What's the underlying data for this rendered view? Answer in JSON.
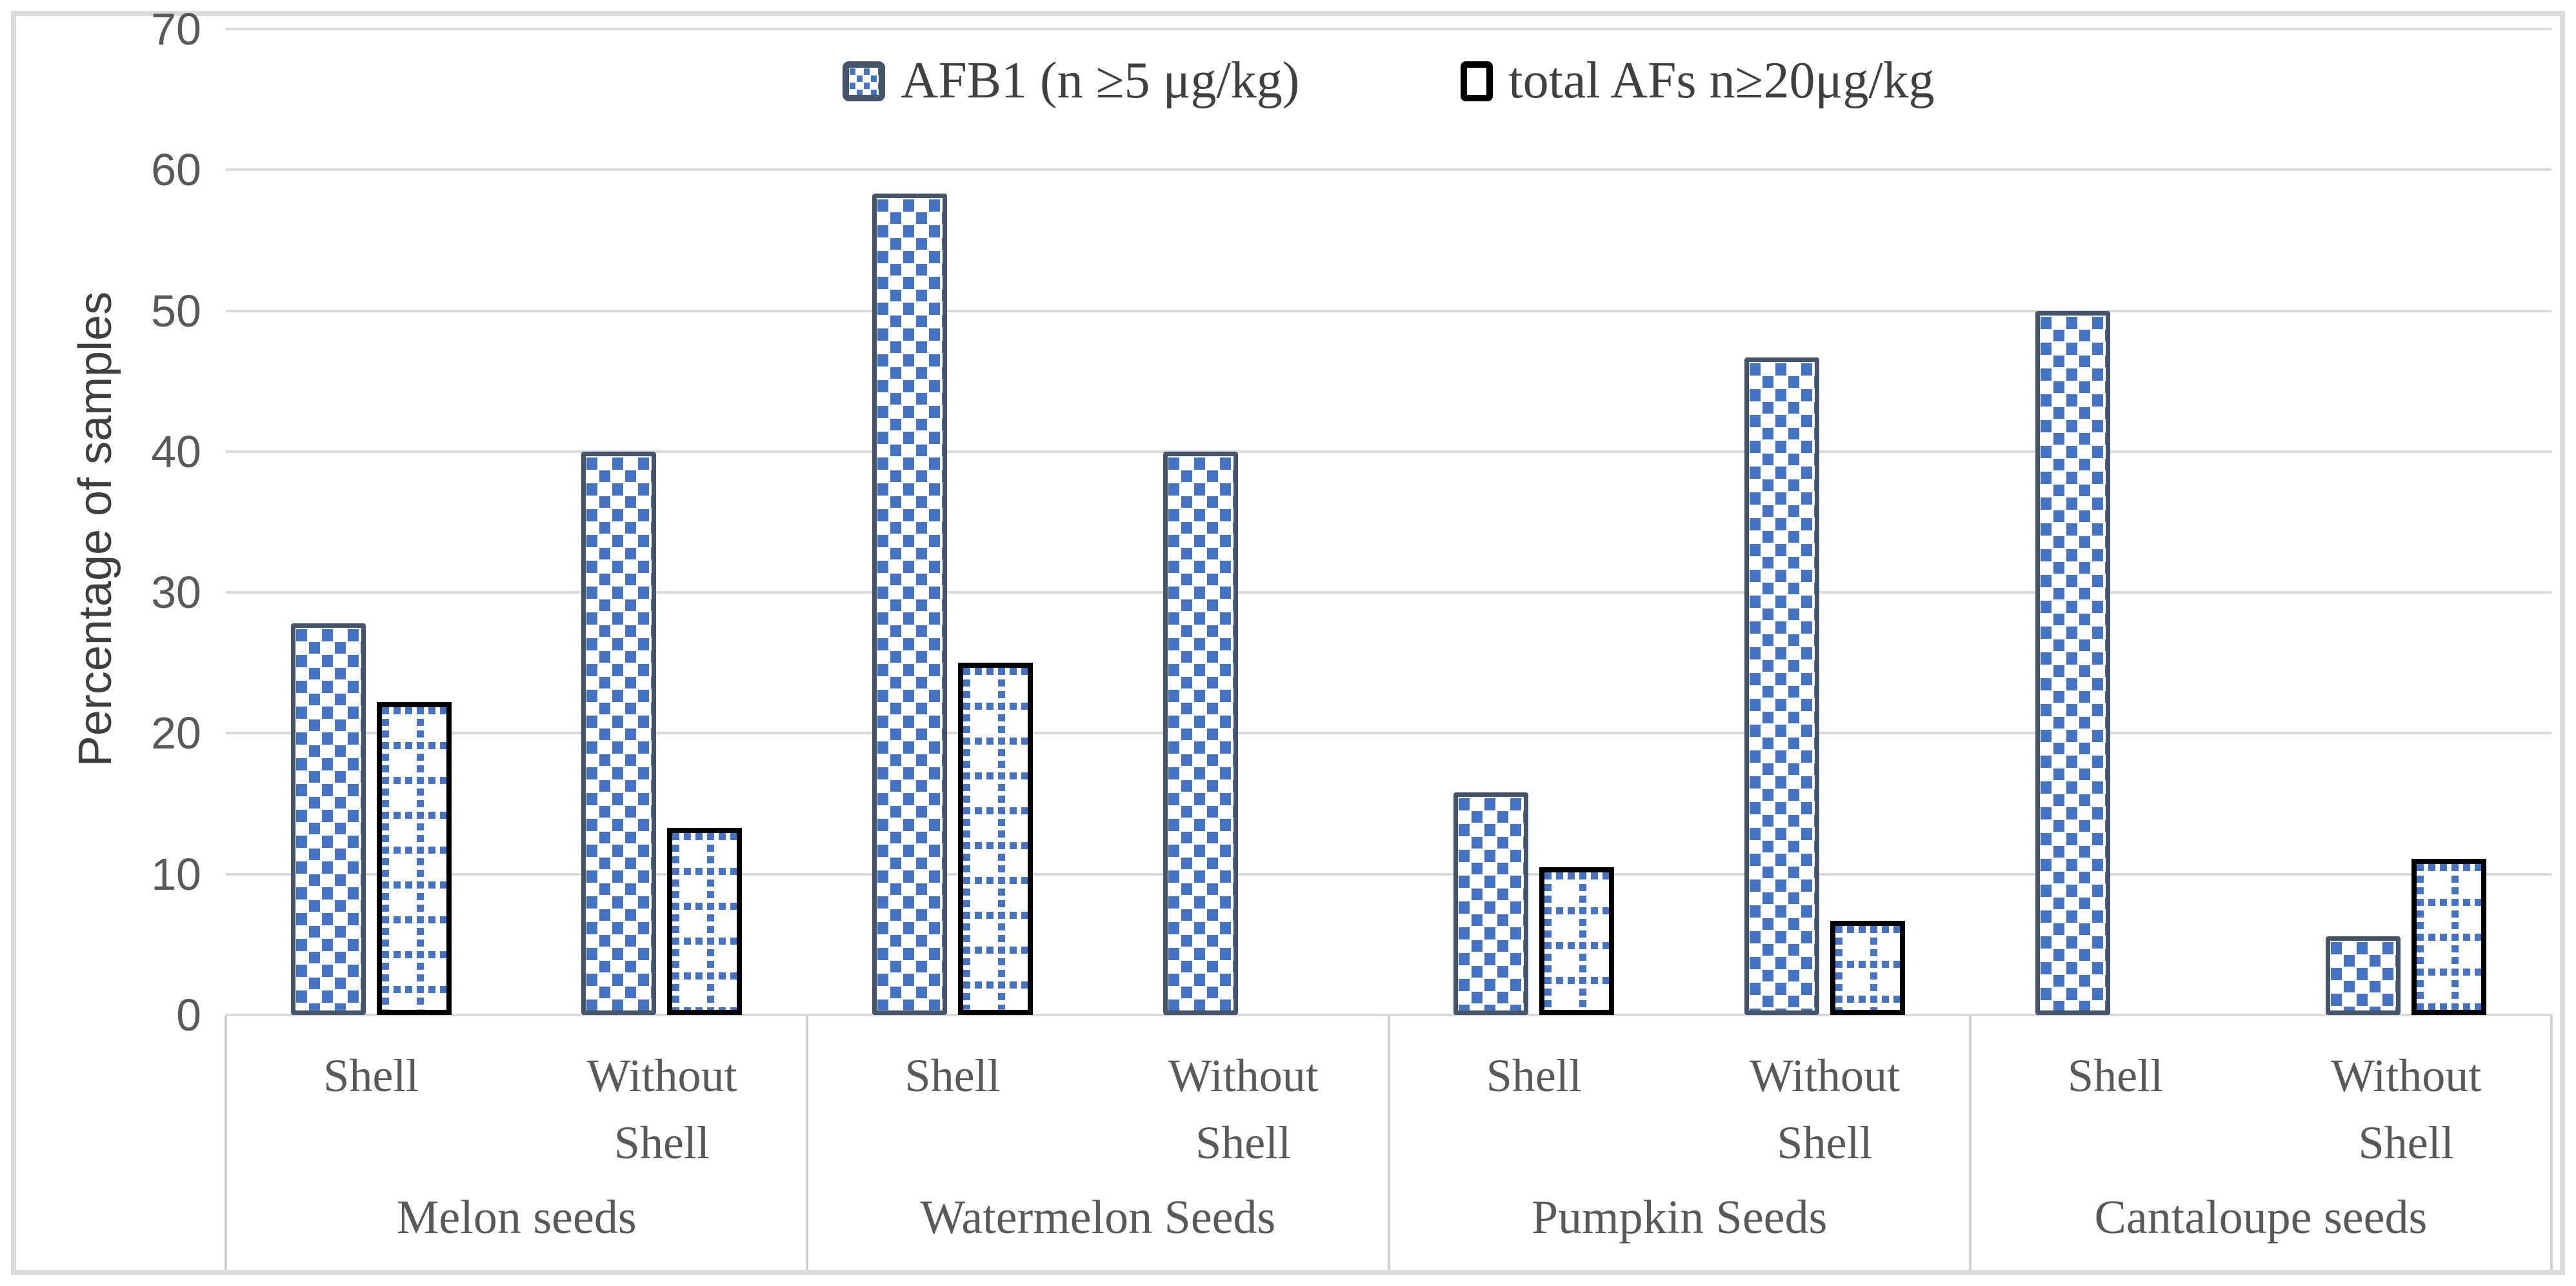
{
  "figure": {
    "background": "#ffffff",
    "outer_border_color": "#dbdbdb",
    "gridline_color": "#d9d9d9",
    "pattern_fill_color": "#4472c4"
  },
  "chart_data": {
    "type": "bar",
    "title": "",
    "ylabel": "Percentage of samples",
    "xlabel": "",
    "ylim": [
      0,
      70
    ],
    "yticks": [
      0,
      10,
      20,
      30,
      40,
      50,
      60,
      70
    ],
    "grid": "horizontal",
    "legend_position": "top-center",
    "groups": [
      {
        "label": "Melon seeds",
        "subcategories": [
          "Shell",
          "Without Shell"
        ]
      },
      {
        "label": "Watermelon Seeds",
        "subcategories": [
          "Shell",
          "Without Shell"
        ]
      },
      {
        "label": "Pumpkin Seeds",
        "subcategories": [
          "Shell",
          "Without Shell"
        ]
      },
      {
        "label": "Cantaloupe seeds",
        "subcategories": [
          "Shell",
          "Without Shell"
        ]
      }
    ],
    "series": [
      {
        "name": "AFB1 (n ≥5 μg/kg)",
        "pattern": "blue-squares",
        "border_color": "#44546a",
        "values": [
          27.8,
          40,
          58.3,
          40,
          15.8,
          46.7,
          50,
          5.6
        ]
      },
      {
        "name": "total AFs n≥20μg/kg",
        "pattern": "blue-dotted-grid",
        "border_color": "#000000",
        "values": [
          22.2,
          13.3,
          25,
          0,
          10.5,
          6.7,
          0,
          11.1
        ]
      }
    ]
  }
}
